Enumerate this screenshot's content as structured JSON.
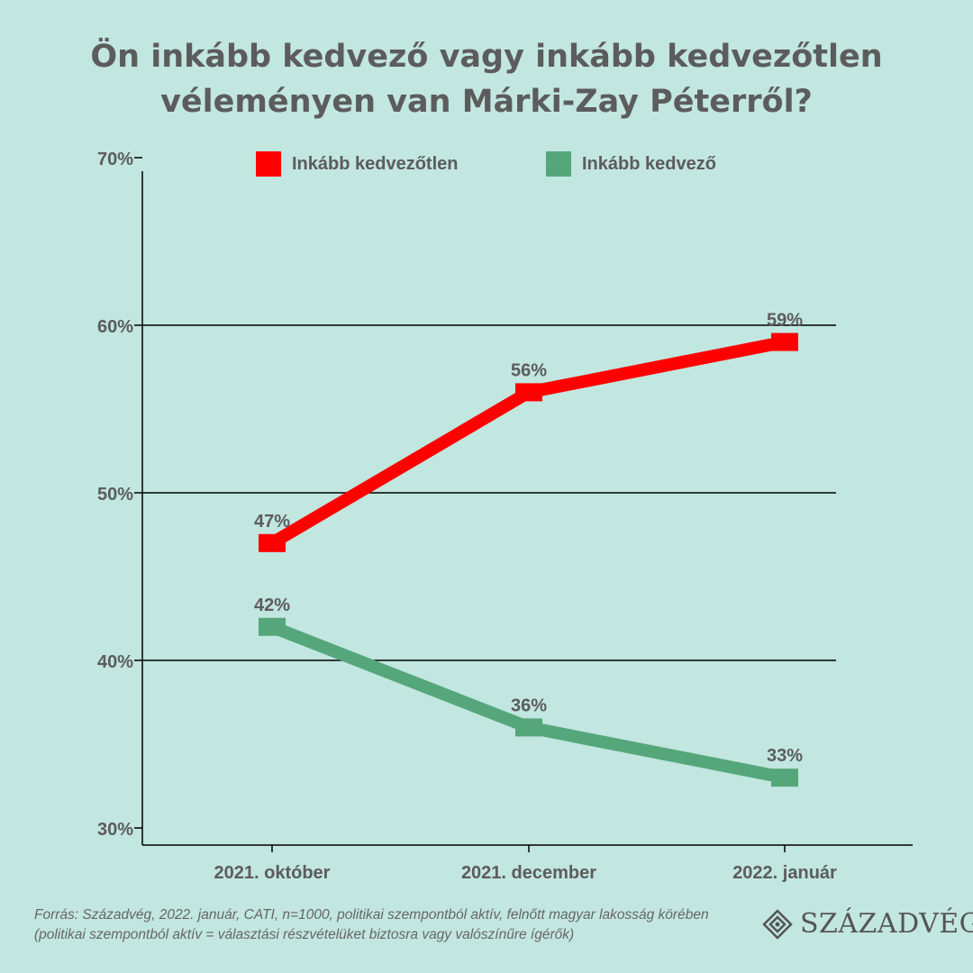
{
  "title": {
    "line1": "Ön inkább kedvező vagy inkább kedvezőtlen",
    "line2": "véleményen van Márki-Zay Péterről?"
  },
  "legend": [
    {
      "label": "Inkább kedvezőtlen",
      "color": "#ff0000"
    },
    {
      "label": "Inkább kedvező",
      "color": "#55a77b"
    }
  ],
  "chart_data": {
    "type": "line",
    "categories": [
      "2021. október",
      "2021. december",
      "2022. január"
    ],
    "series": [
      {
        "name": "Inkább kedvezőtlen",
        "values": [
          47,
          56,
          59
        ],
        "value_labels": [
          "47%",
          "56%",
          "59%"
        ],
        "color": "#ff0000"
      },
      {
        "name": "Inkább kedvező",
        "values": [
          42,
          36,
          33
        ],
        "value_labels": [
          "42%",
          "36%",
          "33%"
        ],
        "color": "#55a77b"
      }
    ],
    "ylim": [
      30,
      70
    ],
    "yticks": [
      30,
      40,
      50,
      60,
      70
    ],
    "ytick_labels": [
      "30%",
      "40%",
      "50%",
      "60%",
      "70%"
    ],
    "gridlines": [
      40,
      50,
      60
    ],
    "legend_position": "top"
  },
  "source": {
    "line1": "Forrás: Századvég, 2022. január, CATI, n=1000, politikai szempontból aktív, felnőtt magyar lakosság körében",
    "line2": "(politikai szempontból aktív = választási részvételüket biztosra vagy valószínűre ígérők)"
  },
  "logo": {
    "text": "SZÁZADVÉG",
    "icon": "diamond-knot-icon"
  }
}
